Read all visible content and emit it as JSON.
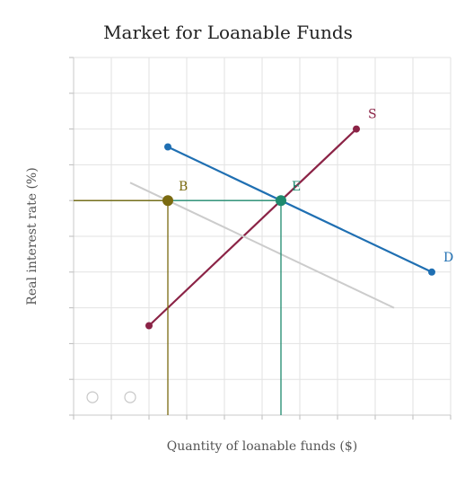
{
  "chart_data": {
    "type": "line",
    "title": "Market for Loanable Funds",
    "xlabel": "Quantity of loanable funds ($)",
    "ylabel": "Real interest rate (%)",
    "xlim": [
      0,
      10
    ],
    "ylim": [
      0,
      10
    ],
    "grid": true,
    "tick_labels": false,
    "series": [
      {
        "name": "S",
        "color": "#8b2346",
        "points": [
          [
            2,
            2.5
          ],
          [
            7.5,
            8
          ]
        ],
        "markers": "both",
        "label_at": "end"
      },
      {
        "name": "D",
        "color": "#1f6fb2",
        "points": [
          [
            2.5,
            7.5
          ],
          [
            9.5,
            4
          ]
        ],
        "markers": "both",
        "label_at": "end"
      },
      {
        "name": "",
        "color": "#cccccc",
        "points": [
          [
            1.5,
            6.5
          ],
          [
            8.5,
            3
          ]
        ],
        "markers": "none"
      }
    ],
    "points": [
      {
        "name": "E",
        "x": 5.5,
        "y": 6,
        "color": "#1e8a6e",
        "guides": true
      },
      {
        "name": "B",
        "x": 2.5,
        "y": 6,
        "color": "#7a6a10",
        "guides": true
      }
    ],
    "hollow_markers": [
      [
        0.5,
        0.5
      ],
      [
        1.5,
        0.5
      ]
    ]
  }
}
